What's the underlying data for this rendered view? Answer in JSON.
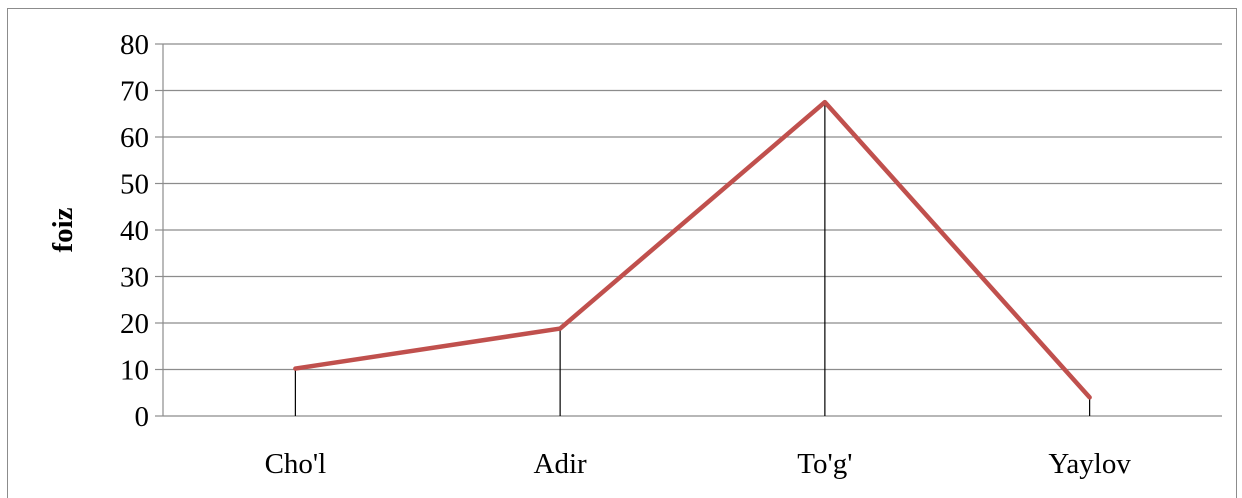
{
  "chart_data": {
    "type": "line",
    "title": "",
    "xlabel": "",
    "ylabel": "foiz",
    "categories": [
      "Cho'l",
      "Adir",
      "To'g'",
      "Yaylov"
    ],
    "series": [
      {
        "values": [
          10.2,
          18.8,
          67.5,
          4.0
        ],
        "color": "#c0504d"
      }
    ],
    "ylim": [
      0,
      80
    ],
    "yticks": [
      0,
      10,
      20,
      30,
      40,
      50,
      60,
      70,
      80
    ],
    "grid": true,
    "drop_lines": true,
    "legend": "none"
  }
}
